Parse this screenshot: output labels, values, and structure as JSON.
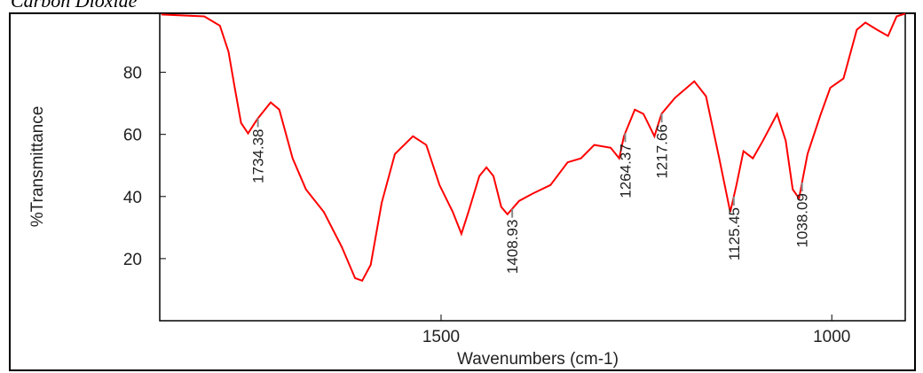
{
  "chart_data": {
    "type": "line",
    "title": "Carbon Dioxide",
    "x_label": "Wavenumbers (cm-1)",
    "y_label": "%Transmittance",
    "color": "#ff0000",
    "x": [
      1858,
      1803,
      1783,
      1772,
      1764,
      1756,
      1747,
      1735,
      1718,
      1707,
      1690,
      1673,
      1650,
      1627,
      1610,
      1601,
      1590,
      1576,
      1559,
      1536,
      1519,
      1502,
      1485,
      1474,
      1465,
      1451,
      1442,
      1433,
      1423,
      1415,
      1400,
      1383,
      1360,
      1338,
      1321,
      1304,
      1283,
      1272,
      1266,
      1252,
      1241,
      1227,
      1218,
      1201,
      1176,
      1161,
      1144,
      1130,
      1122,
      1113,
      1101,
      1088,
      1070,
      1059,
      1050,
      1042,
      1031,
      1014,
      1002,
      985,
      968,
      957,
      942,
      928,
      917,
      906
    ],
    "values": [
      98.6,
      98,
      95,
      86.6,
      75,
      63.7,
      60.3,
      65,
      70.3,
      68,
      52.3,
      42.3,
      35,
      23.7,
      13.7,
      12.9,
      18,
      38,
      53.7,
      59.4,
      56.6,
      43.7,
      35,
      28,
      35,
      46.6,
      49.4,
      46.6,
      36.6,
      34.3,
      38.6,
      40.9,
      43.7,
      51,
      52.3,
      56.6,
      55.7,
      52.3,
      59.4,
      68,
      66.6,
      59.4,
      66.6,
      71.7,
      77.1,
      72.3,
      52.3,
      35,
      43.7,
      54.6,
      52.3,
      58,
      66.6,
      58,
      42.3,
      39.4,
      53.7,
      66.6,
      75,
      78,
      93.7,
      96,
      93.7,
      91.7,
      98,
      98.9
    ],
    "peaks": [
      1734.38,
      1408.93,
      1264.37,
      1217.66,
      1125.45,
      1038.09
    ],
    "xlim": [
      1860,
      906
    ],
    "ylim": [
      0,
      99
    ],
    "xticks": [
      1500,
      1000
    ],
    "yticks": [
      20,
      40,
      60,
      80
    ]
  }
}
